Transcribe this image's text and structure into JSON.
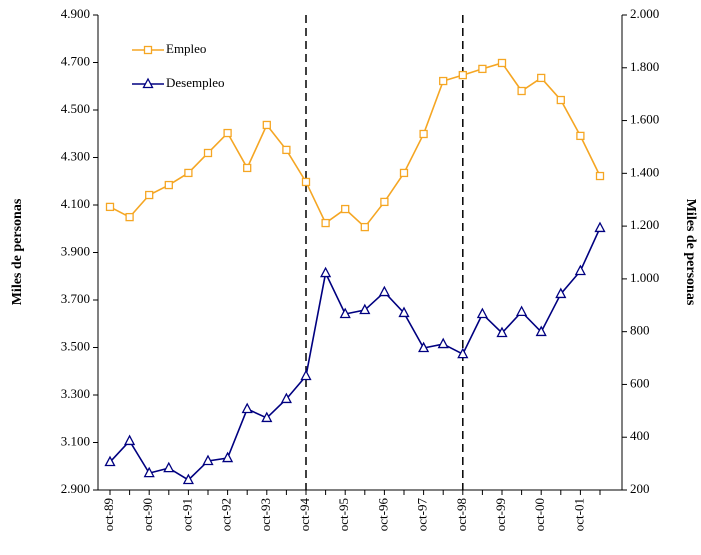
{
  "chart_data": {
    "type": "line",
    "categories": [
      "oct-89",
      null,
      "oct-90",
      null,
      "oct-91",
      null,
      "oct-92",
      null,
      "oct-93",
      null,
      "oct-94",
      null,
      "oct-95",
      null,
      "oct-96",
      null,
      "oct-97",
      null,
      "oct-98",
      null,
      "oct-99",
      null,
      "oct-00",
      null,
      "oct-01",
      null
    ],
    "series": [
      {
        "name": "Empleo",
        "color": "#f5a623",
        "marker": "square",
        "axis": "y",
        "values": [
          4092,
          4049,
          4142,
          4184,
          4235,
          4319,
          4403,
          4256,
          4437,
          4332,
          4197,
          4024,
          4083,
          4007,
          4113,
          4235,
          4399,
          4622,
          4647,
          4673,
          4698,
          4580,
          4635,
          4542,
          4391,
          4222
        ]
      },
      {
        "name": "Desempleo",
        "color": "#000080",
        "marker": "triangle",
        "axis": "y2",
        "values": [
          306,
          386,
          264,
          283,
          238,
          310,
          321,
          507,
          473,
          545,
          632,
          1022,
          867,
          882,
          950,
          871,
          738,
          753,
          715,
          867,
          795,
          875,
          799,
          943,
          1030,
          1193
        ]
      }
    ],
    "ylabel": "Miles de personas",
    "y2label": "Miles de personas",
    "ylim": [
      2900,
      4900
    ],
    "yticks": [
      {
        "value": 2900,
        "label": "2.900"
      },
      {
        "value": 3100,
        "label": "3.100"
      },
      {
        "value": 3300,
        "label": "3.300"
      },
      {
        "value": 3500,
        "label": "3.500"
      },
      {
        "value": 3700,
        "label": "3.700"
      },
      {
        "value": 3900,
        "label": "3.900"
      },
      {
        "value": 4100,
        "label": "4.100"
      },
      {
        "value": 4300,
        "label": "4.300"
      },
      {
        "value": 4500,
        "label": "4.500"
      },
      {
        "value": 4700,
        "label": "4.700"
      },
      {
        "value": 4900,
        "label": "4.900"
      }
    ],
    "y2lim": [
      200,
      2000
    ],
    "y2ticks": [
      200,
      400,
      600,
      800,
      {
        "value": 1000,
        "label": "1.000"
      },
      {
        "value": 1200,
        "label": "1.200"
      },
      {
        "value": 1400,
        "label": "1.400"
      },
      {
        "value": 1600,
        "label": "1.600"
      },
      {
        "value": 1800,
        "label": "1.800"
      },
      {
        "value": 2000,
        "label": "2.000"
      }
    ],
    "reference_lines": [
      "oct-94",
      "oct-98"
    ],
    "legend": "upper-left",
    "grid": false
  }
}
